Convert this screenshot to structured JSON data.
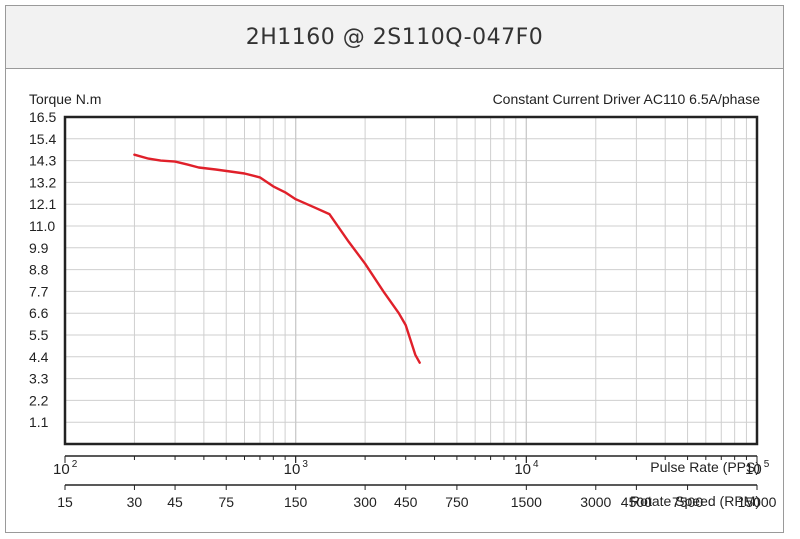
{
  "chart_data": {
    "type": "line",
    "title": "2H1160 @ 2S110Q-047F0",
    "ylabel": "Torque N.m",
    "subtitle": "Constant Current Driver AC110 6.5A/phase",
    "yticks": [
      "16.5",
      "15.4",
      "14.3",
      "13.2",
      "12.1",
      "11.0",
      "9.9",
      "8.8",
      "7.7",
      "6.6",
      "5.5",
      "4.4",
      "3.3",
      "2.2",
      "1.1"
    ],
    "ylim": [
      0,
      16.5
    ],
    "x_scale": "log",
    "xlim": [
      100,
      100000
    ],
    "pulse_rate_label": "Pulse Rate (PPS)",
    "pulse_rate_ticks": [
      {
        "value": 100,
        "base": "10",
        "exp": "2"
      },
      {
        "value": 1000,
        "base": "10",
        "exp": "3"
      },
      {
        "value": 10000,
        "base": "10",
        "exp": "4"
      },
      {
        "value": 100000,
        "base": "10",
        "exp": "5"
      }
    ],
    "rotate_speed_label": "Rotate Speed (RPM)",
    "rotate_speed_ticks": [
      {
        "rpm": "15",
        "pps": 100
      },
      {
        "rpm": "30",
        "pps": 200
      },
      {
        "rpm": "45",
        "pps": 300
      },
      {
        "rpm": "75",
        "pps": 500
      },
      {
        "rpm": "150",
        "pps": 1000
      },
      {
        "rpm": "300",
        "pps": 2000
      },
      {
        "rpm": "450",
        "pps": 3000
      },
      {
        "rpm": "750",
        "pps": 5000
      },
      {
        "rpm": "1500",
        "pps": 10000
      },
      {
        "rpm": "3000",
        "pps": 20000
      },
      {
        "rpm": "4500",
        "pps": 30000
      },
      {
        "rpm": "7500",
        "pps": 50000
      },
      {
        "rpm": "15000",
        "pps": 100000
      }
    ],
    "grid": true,
    "series": [
      {
        "color": "#e0202a",
        "points": [
          [
            200,
            14.6
          ],
          [
            230,
            14.4
          ],
          [
            260,
            14.3
          ],
          [
            300,
            14.25
          ],
          [
            340,
            14.1
          ],
          [
            380,
            13.95
          ],
          [
            450,
            13.85
          ],
          [
            520,
            13.75
          ],
          [
            600,
            13.65
          ],
          [
            700,
            13.45
          ],
          [
            800,
            13.0
          ],
          [
            900,
            12.7
          ],
          [
            1000,
            12.35
          ],
          [
            1200,
            11.95
          ],
          [
            1400,
            11.6
          ],
          [
            1700,
            10.2
          ],
          [
            2000,
            9.1
          ],
          [
            2400,
            7.7
          ],
          [
            2800,
            6.6
          ],
          [
            3000,
            6.0
          ],
          [
            3300,
            4.5
          ],
          [
            3450,
            4.1
          ]
        ]
      }
    ]
  }
}
